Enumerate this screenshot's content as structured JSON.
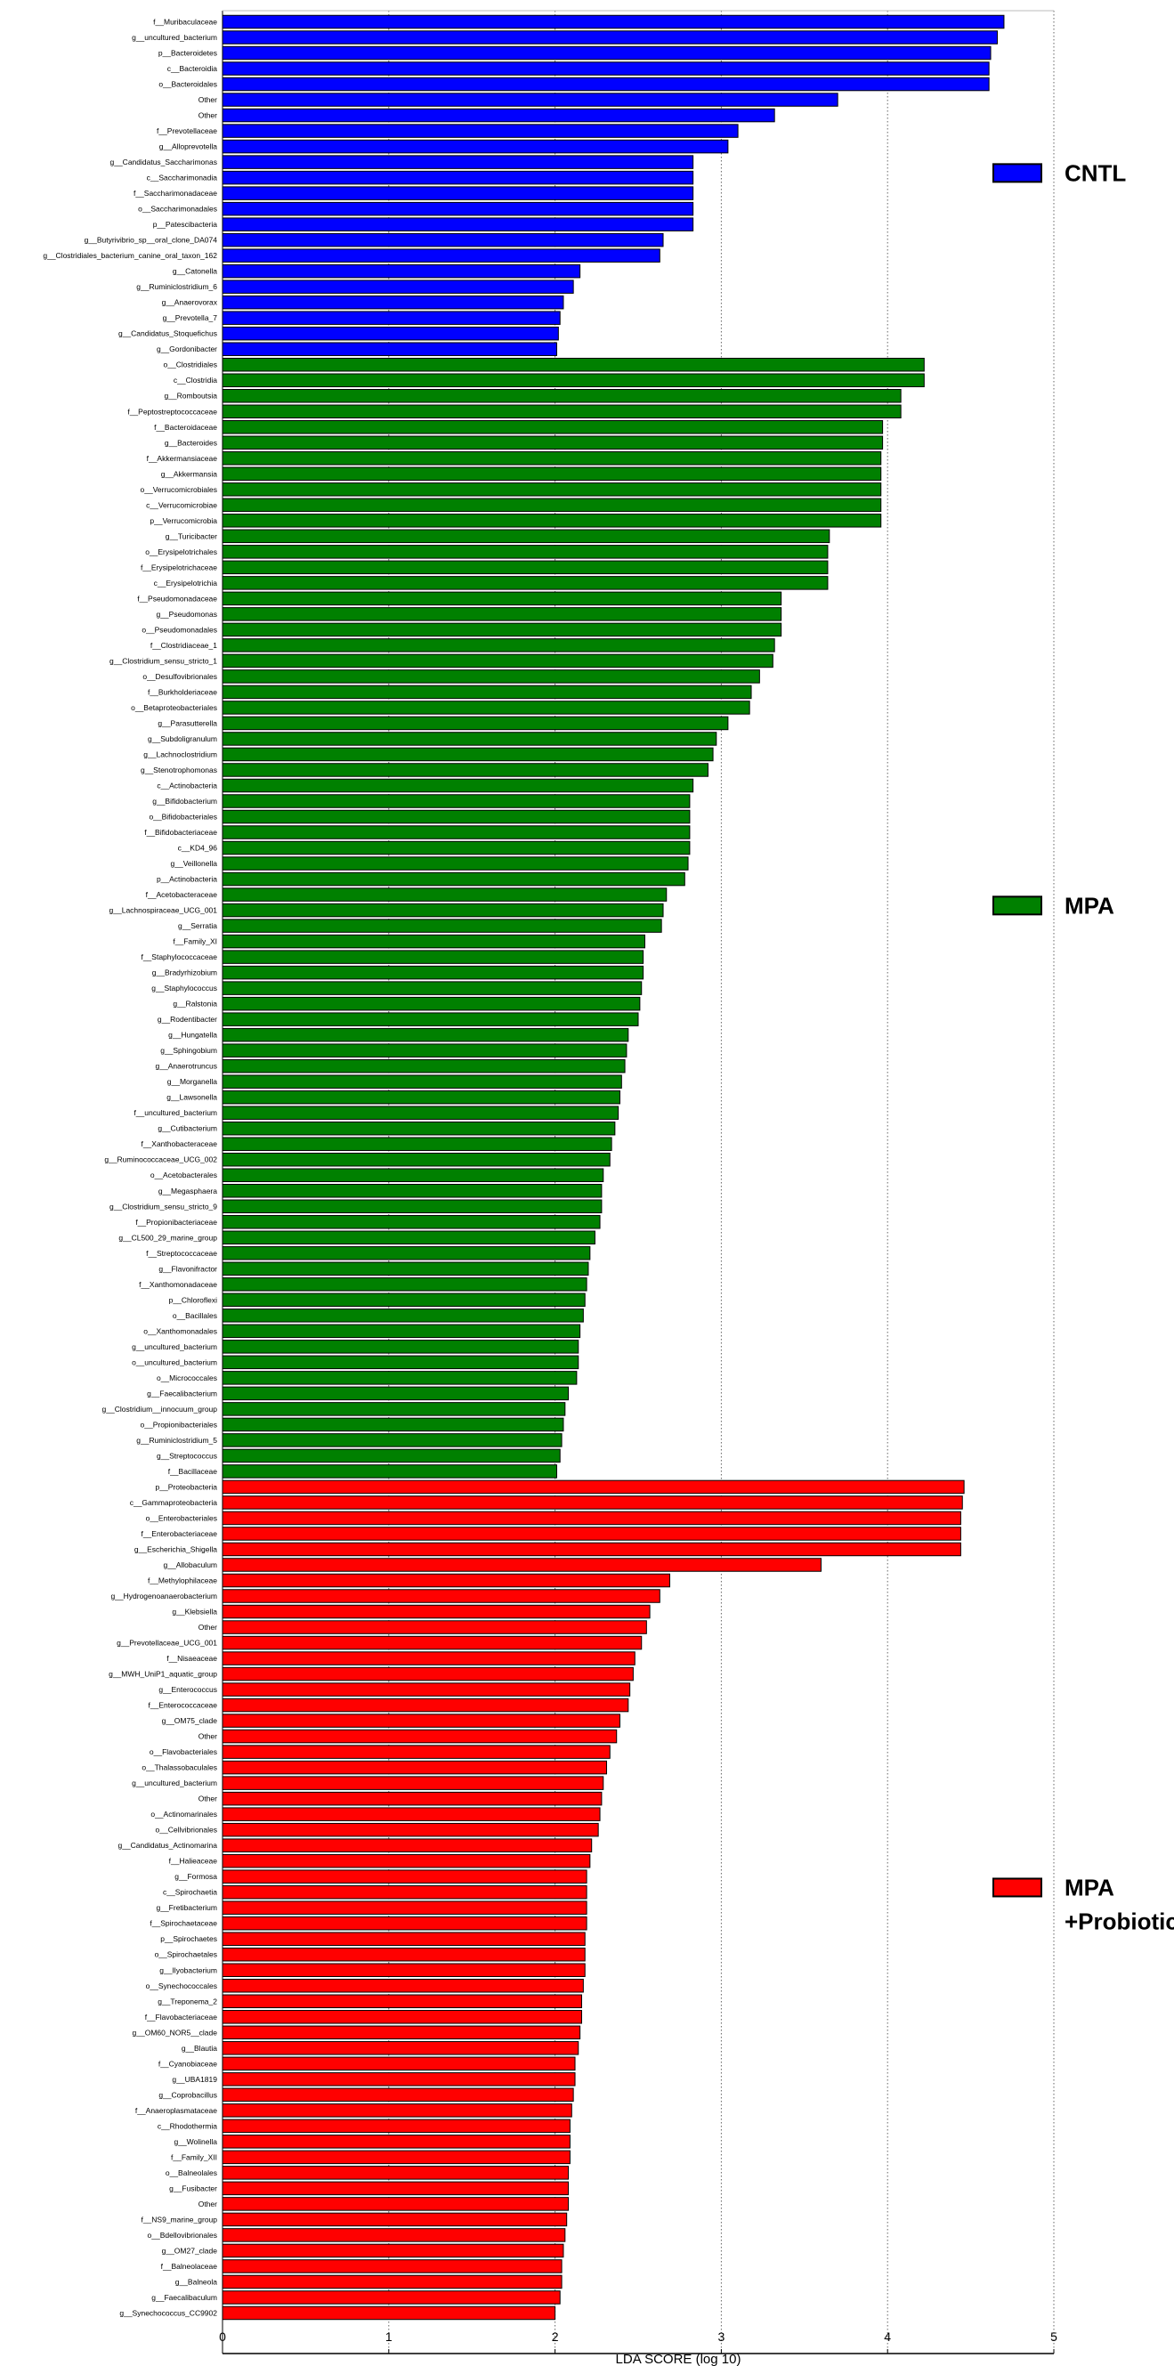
{
  "chart_data": {
    "type": "bar",
    "orientation": "horizontal",
    "title": "",
    "xlabel": "LDA SCORE (log 10)",
    "ylabel": "",
    "xlim": [
      0,
      5
    ],
    "xticks": [
      "0",
      "1",
      "2",
      "3",
      "4",
      "5"
    ],
    "grid": true,
    "legend_position": "right",
    "groups": [
      {
        "name_lines": [
          "CNTL"
        ],
        "color": "#0000ff",
        "items": [
          {
            "label": "f__Muribaculaceae",
            "value": 4.7
          },
          {
            "label": "g__uncultured_bacterium",
            "value": 4.66
          },
          {
            "label": "p__Bacteroidetes",
            "value": 4.62
          },
          {
            "label": "c__Bacteroidia",
            "value": 4.61
          },
          {
            "label": "o__Bacteroidales",
            "value": 4.61
          },
          {
            "label": "Other",
            "value": 3.7
          },
          {
            "label": "Other",
            "value": 3.32
          },
          {
            "label": "f__Prevotellaceae",
            "value": 3.1
          },
          {
            "label": "g__Alloprevotella",
            "value": 3.04
          },
          {
            "label": "g__Candidatus_Saccharimonas",
            "value": 2.83
          },
          {
            "label": "c__Saccharimonadia",
            "value": 2.83
          },
          {
            "label": "f__Saccharimonadaceae",
            "value": 2.83
          },
          {
            "label": "o__Saccharimonadales",
            "value": 2.83
          },
          {
            "label": "p__Patescibacteria",
            "value": 2.83
          },
          {
            "label": "g__Butyrivibrio_sp__oral_clone_DA074",
            "value": 2.65
          },
          {
            "label": "g__Clostridiales_bacterium_canine_oral_taxon_162",
            "value": 2.63
          },
          {
            "label": "g__Catonella",
            "value": 2.15
          },
          {
            "label": "g__Ruminiclostridium_6",
            "value": 2.11
          },
          {
            "label": "g__Anaerovorax",
            "value": 2.05
          },
          {
            "label": "g__Prevotella_7",
            "value": 2.03
          },
          {
            "label": "g__Candidatus_Stoquefichus",
            "value": 2.02
          },
          {
            "label": "g__Gordonibacter",
            "value": 2.01
          }
        ]
      },
      {
        "name_lines": [
          "MPA"
        ],
        "color": "#008000",
        "items": [
          {
            "label": "o__Clostridiales",
            "value": 4.22
          },
          {
            "label": "c__Clostridia",
            "value": 4.22
          },
          {
            "label": "g__Romboutsia",
            "value": 4.08
          },
          {
            "label": "f__Peptostreptococcaceae",
            "value": 4.08
          },
          {
            "label": "f__Bacteroidaceae",
            "value": 3.97
          },
          {
            "label": "g__Bacteroides",
            "value": 3.97
          },
          {
            "label": "f__Akkermansiaceae",
            "value": 3.96
          },
          {
            "label": "g__Akkermansia",
            "value": 3.96
          },
          {
            "label": "o__Verrucomicrobiales",
            "value": 3.96
          },
          {
            "label": "c__Verrucomicrobiae",
            "value": 3.96
          },
          {
            "label": "p__Verrucomicrobia",
            "value": 3.96
          },
          {
            "label": "g__Turicibacter",
            "value": 3.65
          },
          {
            "label": "o__Erysipelotrichales",
            "value": 3.64
          },
          {
            "label": "f__Erysipelotrichaceae",
            "value": 3.64
          },
          {
            "label": "c__Erysipelotrichia",
            "value": 3.64
          },
          {
            "label": "f__Pseudomonadaceae",
            "value": 3.36
          },
          {
            "label": "g__Pseudomonas",
            "value": 3.36
          },
          {
            "label": "o__Pseudomonadales",
            "value": 3.36
          },
          {
            "label": "f__Clostridiaceae_1",
            "value": 3.32
          },
          {
            "label": "g__Clostridium_sensu_stricto_1",
            "value": 3.31
          },
          {
            "label": "o__Desulfovibrionales",
            "value": 3.23
          },
          {
            "label": "f__Burkholderiaceae",
            "value": 3.18
          },
          {
            "label": "o__Betaproteobacteriales",
            "value": 3.17
          },
          {
            "label": "g__Parasutterella",
            "value": 3.04
          },
          {
            "label": "g__Subdoligranulum",
            "value": 2.97
          },
          {
            "label": "g__Lachnoclostridium",
            "value": 2.95
          },
          {
            "label": "g__Stenotrophomonas",
            "value": 2.92
          },
          {
            "label": "c__Actinobacteria",
            "value": 2.83
          },
          {
            "label": "g__Bifidobacterium",
            "value": 2.81
          },
          {
            "label": "o__Bifidobacteriales",
            "value": 2.81
          },
          {
            "label": "f__Bifidobacteriaceae",
            "value": 2.81
          },
          {
            "label": "c__KD4_96",
            "value": 2.81
          },
          {
            "label": "g__Veillonella",
            "value": 2.8
          },
          {
            "label": "p__Actinobacteria",
            "value": 2.78
          },
          {
            "label": "f__Acetobacteraceae",
            "value": 2.67
          },
          {
            "label": "g__Lachnospiraceae_UCG_001",
            "value": 2.65
          },
          {
            "label": "g__Serratia",
            "value": 2.64
          },
          {
            "label": "f__Family_XI",
            "value": 2.54
          },
          {
            "label": "f__Staphylococcaceae",
            "value": 2.53
          },
          {
            "label": "g__Bradyrhizobium",
            "value": 2.53
          },
          {
            "label": "g__Staphylococcus",
            "value": 2.52
          },
          {
            "label": "g__Ralstonia",
            "value": 2.51
          },
          {
            "label": "g__Rodentibacter",
            "value": 2.5
          },
          {
            "label": "g__Hungatella",
            "value": 2.44
          },
          {
            "label": "g__Sphingobium",
            "value": 2.43
          },
          {
            "label": "g__Anaerotruncus",
            "value": 2.42
          },
          {
            "label": "g__Morganella",
            "value": 2.4
          },
          {
            "label": "g__Lawsonella",
            "value": 2.39
          },
          {
            "label": "f__uncultured_bacterium",
            "value": 2.38
          },
          {
            "label": "g__Cutibacterium",
            "value": 2.36
          },
          {
            "label": "f__Xanthobacteraceae",
            "value": 2.34
          },
          {
            "label": "g__Ruminococcaceae_UCG_002",
            "value": 2.33
          },
          {
            "label": "o__Acetobacterales",
            "value": 2.29
          },
          {
            "label": "g__Megasphaera",
            "value": 2.28
          },
          {
            "label": "g__Clostridium_sensu_stricto_9",
            "value": 2.28
          },
          {
            "label": "f__Propionibacteriaceae",
            "value": 2.27
          },
          {
            "label": "g__CL500_29_marine_group",
            "value": 2.24
          },
          {
            "label": "f__Streptococcaceae",
            "value": 2.21
          },
          {
            "label": "g__Flavonifractor",
            "value": 2.2
          },
          {
            "label": "f__Xanthomonadaceae",
            "value": 2.19
          },
          {
            "label": "p__Chloroflexi",
            "value": 2.18
          },
          {
            "label": "o__Bacillales",
            "value": 2.17
          },
          {
            "label": "o__Xanthomonadales",
            "value": 2.15
          },
          {
            "label": "g__uncultured_bacterium",
            "value": 2.14
          },
          {
            "label": "o__uncultured_bacterium",
            "value": 2.14
          },
          {
            "label": "o__Micrococcales",
            "value": 2.13
          },
          {
            "label": "g__Faecalibacterium",
            "value": 2.08
          },
          {
            "label": "g__Clostridium__innocuum_group",
            "value": 2.06
          },
          {
            "label": "o__Propionibacteriales",
            "value": 2.05
          },
          {
            "label": "g__Ruminiclostridium_5",
            "value": 2.04
          },
          {
            "label": "g__Streptococcus",
            "value": 2.03
          },
          {
            "label": "f__Bacillaceae",
            "value": 2.01
          }
        ]
      },
      {
        "name_lines": [
          "MPA",
          "+Probiotic"
        ],
        "color": "#ff0000",
        "items": [
          {
            "label": "p__Proteobacteria",
            "value": 4.46
          },
          {
            "label": "c__Gammaproteobacteria",
            "value": 4.45
          },
          {
            "label": "o__Enterobacteriales",
            "value": 4.44
          },
          {
            "label": "f__Enterobacteriaceae",
            "value": 4.44
          },
          {
            "label": "g__Escherichia_Shigella",
            "value": 4.44
          },
          {
            "label": "g__Allobaculum",
            "value": 3.6
          },
          {
            "label": "f__Methylophilaceae",
            "value": 2.69
          },
          {
            "label": "g__Hydrogenoanaerobacterium",
            "value": 2.63
          },
          {
            "label": "g__Klebsiella",
            "value": 2.57
          },
          {
            "label": "Other",
            "value": 2.55
          },
          {
            "label": "g__Prevotellaceae_UCG_001",
            "value": 2.52
          },
          {
            "label": "f__Nisaeaceae",
            "value": 2.48
          },
          {
            "label": "g__MWH_UniP1_aquatic_group",
            "value": 2.47
          },
          {
            "label": "g__Enterococcus",
            "value": 2.45
          },
          {
            "label": "f__Enterococcaceae",
            "value": 2.44
          },
          {
            "label": "g__OM75_clade",
            "value": 2.39
          },
          {
            "label": "Other",
            "value": 2.37
          },
          {
            "label": "o__Flavobacteriales",
            "value": 2.33
          },
          {
            "label": "o__Thalassobaculales",
            "value": 2.31
          },
          {
            "label": "g__uncultured_bacterium",
            "value": 2.29
          },
          {
            "label": "Other",
            "value": 2.28
          },
          {
            "label": "o__Actinomarinales",
            "value": 2.27
          },
          {
            "label": "o__Cellvibrionales",
            "value": 2.26
          },
          {
            "label": "g__Candidatus_Actinomarina",
            "value": 2.22
          },
          {
            "label": "f__Halieaceae",
            "value": 2.21
          },
          {
            "label": "g__Formosa",
            "value": 2.19
          },
          {
            "label": "c__Spirochaetia",
            "value": 2.19
          },
          {
            "label": "g__Fretibacterium",
            "value": 2.19
          },
          {
            "label": "f__Spirochaetaceae",
            "value": 2.19
          },
          {
            "label": "p__Spirochaetes",
            "value": 2.18
          },
          {
            "label": "o__Spirochaetales",
            "value": 2.18
          },
          {
            "label": "g__Ilyobacterium",
            "value": 2.18
          },
          {
            "label": "o__Synechococcales",
            "value": 2.17
          },
          {
            "label": "g__Treponema_2",
            "value": 2.16
          },
          {
            "label": "f__Flavobacteriaceae",
            "value": 2.16
          },
          {
            "label": "g__OM60_NOR5__clade",
            "value": 2.15
          },
          {
            "label": "g__Blautia",
            "value": 2.14
          },
          {
            "label": "f__Cyanobiaceae",
            "value": 2.12
          },
          {
            "label": "g__UBA1819",
            "value": 2.12
          },
          {
            "label": "g__Coprobacillus",
            "value": 2.11
          },
          {
            "label": "f__Anaeroplasmataceae",
            "value": 2.1
          },
          {
            "label": "c__Rhodothermia",
            "value": 2.09
          },
          {
            "label": "g__Wolinella",
            "value": 2.09
          },
          {
            "label": "f__Family_XII",
            "value": 2.09
          },
          {
            "label": "o__Balneolales",
            "value": 2.08
          },
          {
            "label": "g__Fusibacter",
            "value": 2.08
          },
          {
            "label": "Other",
            "value": 2.08
          },
          {
            "label": "f__NS9_marine_group",
            "value": 2.07
          },
          {
            "label": "o__Bdellovibrionales",
            "value": 2.06
          },
          {
            "label": "g__OM27_clade",
            "value": 2.05
          },
          {
            "label": "f__Balneolaceae",
            "value": 2.04
          },
          {
            "label": "g__Balneola",
            "value": 2.04
          },
          {
            "label": "g__Faecalibaculum",
            "value": 2.03
          },
          {
            "label": "g__Synechococcus_CC9902",
            "value": 2.0
          }
        ]
      }
    ]
  }
}
